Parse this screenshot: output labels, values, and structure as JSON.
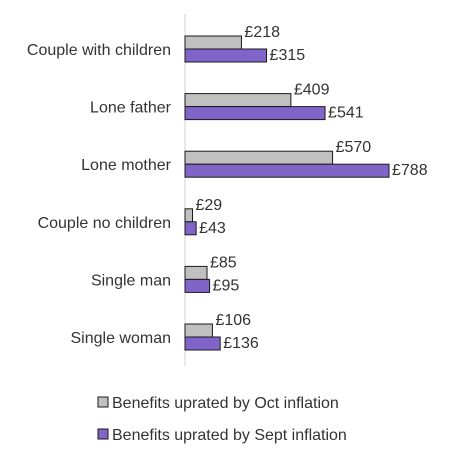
{
  "chart_data": {
    "type": "bar",
    "orientation": "horizontal",
    "categories": [
      "Couple with children",
      "Lone father",
      "Lone mother",
      "Couple no children",
      "Single man",
      "Single woman"
    ],
    "series": [
      {
        "name": "Benefits uprated by Oct inflation",
        "values": [
          218,
          409,
          570,
          29,
          85,
          106
        ],
        "labels": [
          "£218",
          "£409",
          "£570",
          "£29",
          "£85",
          "£106"
        ],
        "color": "#c0c0c0"
      },
      {
        "name": "Benefits uprated by Sept inflation",
        "values": [
          315,
          541,
          788,
          43,
          95,
          136
        ],
        "labels": [
          "£315",
          "£541",
          "£788",
          "£43",
          "£95",
          "£136"
        ],
        "color": "#8064c8"
      }
    ],
    "xlim": [
      0,
      800
    ],
    "grid": false,
    "legend_position": "bottom"
  }
}
